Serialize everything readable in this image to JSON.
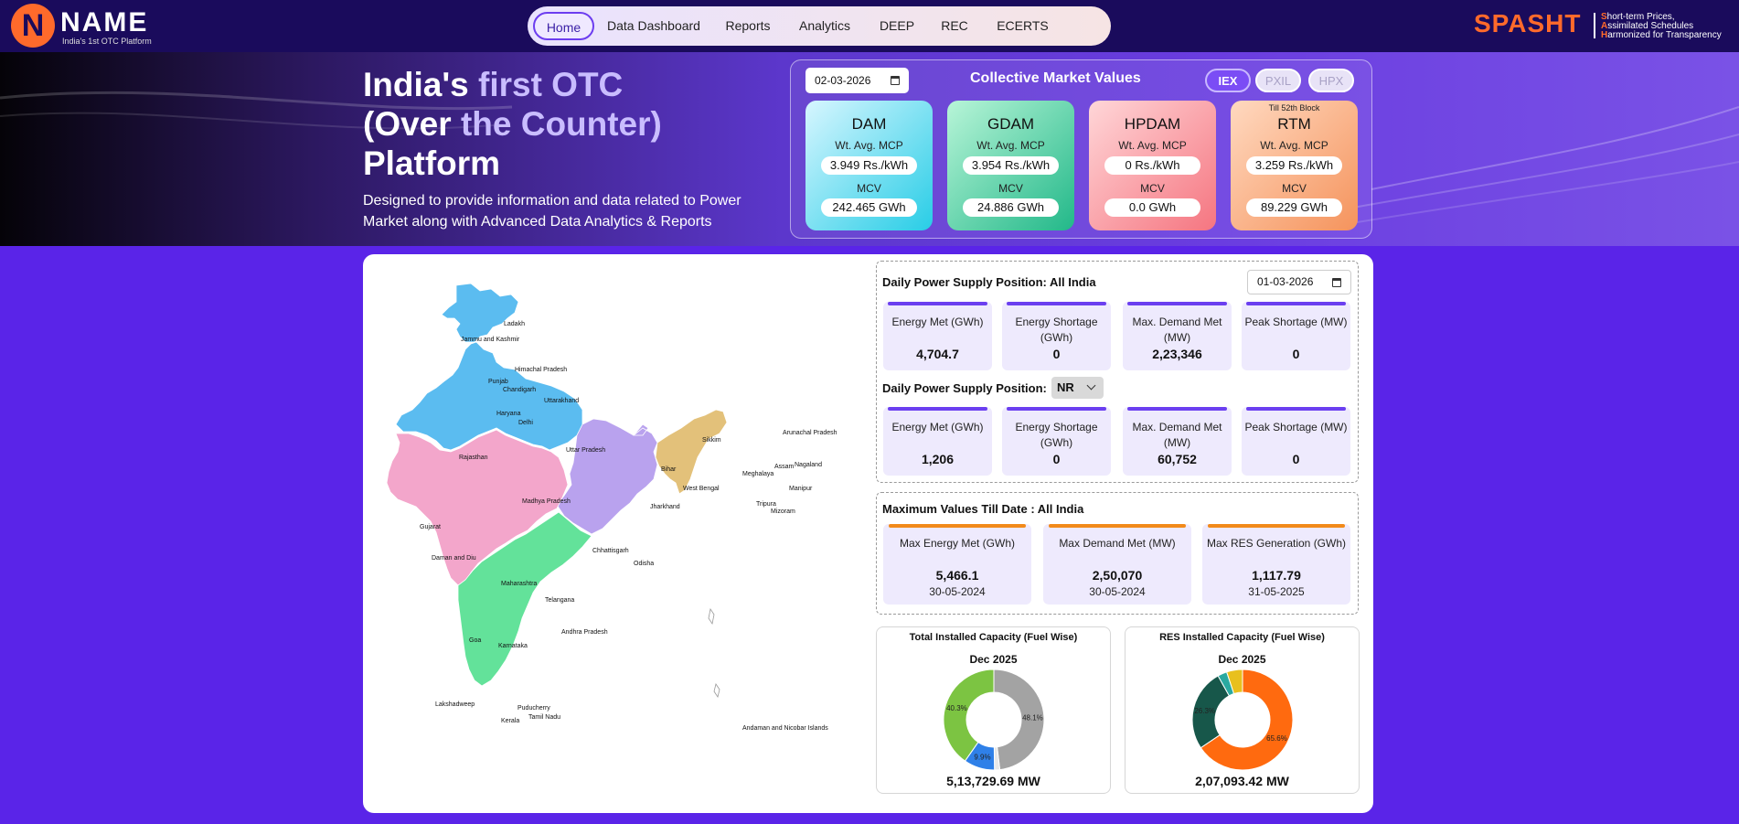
{
  "brand": {
    "mark": "N",
    "name": "NAME",
    "tagline": "India's 1st OTC Platform"
  },
  "nav": [
    {
      "label": "Home"
    },
    {
      "label": "Data Dashboard"
    },
    {
      "label": "Reports"
    },
    {
      "label": "Analytics"
    },
    {
      "label": "DEEP"
    },
    {
      "label": "REC"
    },
    {
      "label": "ECERTS"
    }
  ],
  "spasht": {
    "name": "SPASHT",
    "lines": [
      {
        "initial": "S",
        "rest": "hort-term Prices,"
      },
      {
        "initial": "A",
        "rest": "ssimilated Schedules"
      },
      {
        "initial": "H",
        "rest": "armonized for Transparency"
      }
    ]
  },
  "hero": {
    "title_line1_a": "India's ",
    "title_line1_b": "first OTC",
    "title_line2_a": "(Over ",
    "title_line2_b": "the Counter)",
    "title_line3": "Platform",
    "subtitle": "Designed to provide information and data related to Power Market along with Advanced Data Analytics & Reports"
  },
  "market": {
    "date": "02-03-2026",
    "title": "Collective Market Values",
    "exchanges": [
      {
        "label": "IEX",
        "active": true
      },
      {
        "label": "PXIL",
        "active": false
      },
      {
        "label": "HPX",
        "active": false
      }
    ],
    "cards": [
      {
        "name": "DAM",
        "note": "",
        "mcp_label": "Wt. Avg. MCP",
        "mcp": "3.949 Rs./kWh",
        "mcv_label": "MCV",
        "mcv": "242.465 GWh"
      },
      {
        "name": "GDAM",
        "note": "",
        "mcp_label": "Wt. Avg. MCP",
        "mcp": "3.954 Rs./kWh",
        "mcv_label": "MCV",
        "mcv": "24.886 GWh"
      },
      {
        "name": "HPDAM",
        "note": "",
        "mcp_label": "Wt. Avg. MCP",
        "mcp": "0 Rs./kWh",
        "mcv_label": "MCV",
        "mcv": "0.0 GWh"
      },
      {
        "name": "RTM",
        "note": "Till 52th Block",
        "mcp_label": "Wt. Avg. MCP",
        "mcp": "3.259 Rs./kWh",
        "mcv_label": "MCV",
        "mcv": "89.229 GWh"
      }
    ]
  },
  "map": {
    "labels": {
      "ladakh": "Ladakh",
      "jk": "Jammu and Kashmir",
      "hp": "Himachal Pradesh",
      "punjab": "Punjab",
      "chandigarh": "Chandigarh",
      "uttarakhand": "Uttarakhand",
      "haryana": "Haryana",
      "delhi": "Delhi",
      "rajasthan": "Rajasthan",
      "up": "Uttar Pradesh",
      "sikkim": "Sikkim",
      "arunachal": "Arunachal Pradesh",
      "assam": "Assam",
      "nagaland": "Nagaland",
      "meghalaya": "Meghalaya",
      "bihar": "Bihar",
      "manipur": "Manipur",
      "wb": "West Bengal",
      "tripura": "Tripura",
      "mizoram": "Mizoram",
      "mp": "Madhya Pradesh",
      "jharkhand": "Jharkhand",
      "gujarat": "Gujarat",
      "chhattisgarh": "Chhattisgarh",
      "daman": "Daman and Diu",
      "odisha": "Odisha",
      "maharashtra": "Maharashtra",
      "telangana": "Telangana",
      "ap": "Andhra Pradesh",
      "goa": "Goa",
      "karnataka": "Karnataka",
      "lakshadweep": "Lakshadweep",
      "puducherry": "Puducherry",
      "tn": "Tamil Nadu",
      "kerala": "Kerala",
      "andaman": "Andaman and Nicobar Islands"
    },
    "colors": {
      "north": "#5bbcf0",
      "east": "#b9a2ee",
      "northeast": "#e3c17a",
      "west": "#f3a6cb",
      "south": "#63e29a"
    }
  },
  "daily_all": {
    "title": "Daily Power Supply Position: All India",
    "date": "01-03-2026",
    "stats": [
      {
        "label": "Energy Met (GWh)",
        "value": "4,704.7"
      },
      {
        "label": "Energy Shortage (GWh)",
        "value": "0"
      },
      {
        "label": "Max. Demand Met (MW)",
        "value": "2,23,346"
      },
      {
        "label": "Peak Shortage (MW)",
        "value": "0"
      }
    ]
  },
  "daily_region": {
    "title": "Daily Power Supply Position:",
    "region": "NR",
    "stats": [
      {
        "label": "Energy Met (GWh)",
        "value": "1,206"
      },
      {
        "label": "Energy Shortage (GWh)",
        "value": "0"
      },
      {
        "label": "Max. Demand Met (MW)",
        "value": "60,752"
      },
      {
        "label": "Peak Shortage (MW)",
        "value": "0"
      }
    ]
  },
  "max_values": {
    "title": "Maximum Values Till Date : All India",
    "cards": [
      {
        "label": "Max Energy Met (GWh)",
        "value": "5,466.1",
        "date": "30-05-2024"
      },
      {
        "label": "Max Demand Met (MW)",
        "value": "2,50,070",
        "date": "30-05-2024"
      },
      {
        "label": "Max RES Generation (GWh)",
        "value": "1,117.79",
        "date": "31-05-2025"
      }
    ]
  },
  "chart_data": [
    {
      "type": "pie",
      "title": "Total Installed Capacity (Fuel Wise)",
      "subtitle": "Dec 2025",
      "total_label": "5,13,729.69 MW",
      "slices": [
        {
          "value": 48.1,
          "label": "48.1%",
          "color": "#a3a3a3"
        },
        {
          "value": 1.7,
          "label": "",
          "color": "#e8e8e8"
        },
        {
          "value": 9.9,
          "label": "9.9%",
          "color": "#2f80e8"
        },
        {
          "value": 40.3,
          "label": "40.3%",
          "color": "#7cc442"
        }
      ]
    },
    {
      "type": "pie",
      "title": "RES Installed Capacity (Fuel Wise)",
      "subtitle": "Dec 2025",
      "total_label": "2,07,093.42 MW",
      "slices": [
        {
          "value": 65.6,
          "label": "65.6%",
          "color": "#ff6a0f"
        },
        {
          "value": 26.3,
          "label": "26.3%",
          "color": "#17574a"
        },
        {
          "value": 3.0,
          "label": "",
          "color": "#2aa9a0"
        },
        {
          "value": 5.1,
          "label": "",
          "color": "#e8c01e"
        }
      ]
    }
  ]
}
